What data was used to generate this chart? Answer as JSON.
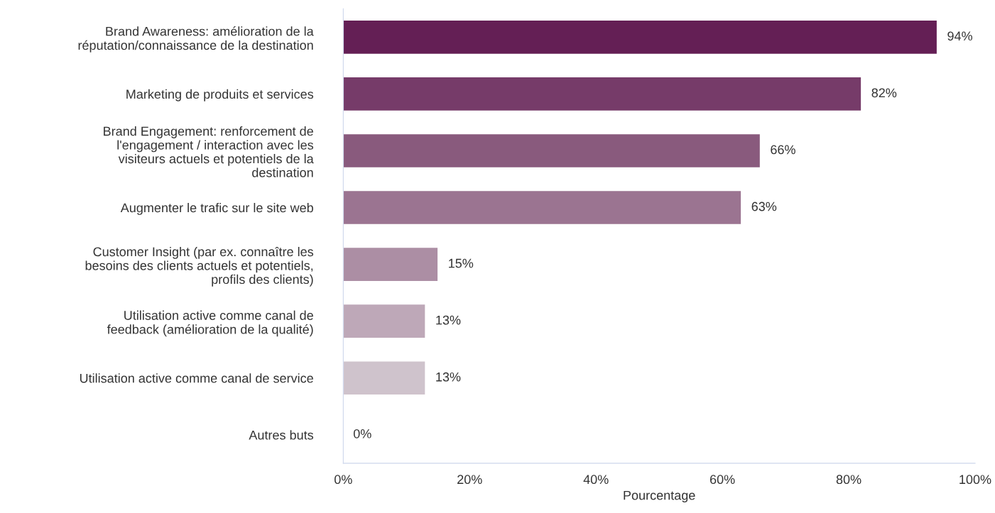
{
  "chart_data": {
    "type": "bar",
    "orientation": "horizontal",
    "categories": [
      "Brand Awareness: amélioration de la\nréputation/connaissance de la destination",
      "Marketing de produits et services",
      "Brand Engagement: renforcement de\nl'engagement / interaction avec les\nvisiteurs actuels et potentiels de la\ndestination",
      "Augmenter le trafic sur le site web",
      "Customer Insight (par ex. connaître les\nbesoins des clients actuels et potentiels,\nprofils des clients)",
      "Utilisation active comme canal de\nfeedback (amélioration de la qualité)",
      "Utilisation active comme canal de service",
      "Autres buts"
    ],
    "values": [
      94,
      82,
      66,
      63,
      15,
      13,
      13,
      0
    ],
    "colors": [
      "#641f55",
      "#763b69",
      "#895a7d",
      "#9b7491",
      "#ac8ea4",
      "#bea8b8",
      "#cfc3cc",
      null
    ],
    "value_labels": [
      "94%",
      "82%",
      "66%",
      "63%",
      "15%",
      "13%",
      "13%",
      "0%"
    ],
    "xlim": [
      0,
      100
    ],
    "xticks": [
      {
        "value": 0,
        "label": "0%"
      },
      {
        "value": 20,
        "label": "20%"
      },
      {
        "value": 40,
        "label": "40%"
      },
      {
        "value": 60,
        "label": "60%"
      },
      {
        "value": 80,
        "label": "80%"
      },
      {
        "value": 100,
        "label": "100%"
      }
    ],
    "xlabel": "Pourcentage",
    "grid": false,
    "legend": false
  }
}
